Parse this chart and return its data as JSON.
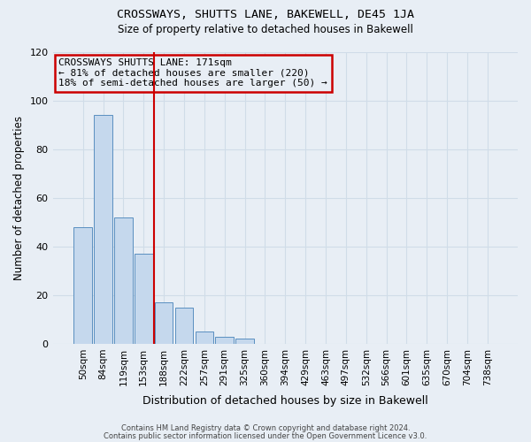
{
  "title": "CROSSWAYS, SHUTTS LANE, BAKEWELL, DE45 1JA",
  "subtitle": "Size of property relative to detached houses in Bakewell",
  "xlabel": "Distribution of detached houses by size in Bakewell",
  "ylabel": "Number of detached properties",
  "bar_labels": [
    "50sqm",
    "84sqm",
    "119sqm",
    "153sqm",
    "188sqm",
    "222sqm",
    "257sqm",
    "291sqm",
    "325sqm",
    "360sqm",
    "394sqm",
    "429sqm",
    "463sqm",
    "497sqm",
    "532sqm",
    "566sqm",
    "601sqm",
    "635sqm",
    "670sqm",
    "704sqm",
    "738sqm"
  ],
  "bar_values": [
    48,
    94,
    52,
    37,
    17,
    15,
    5,
    3,
    2,
    0,
    0,
    0,
    0,
    0,
    0,
    0,
    0,
    0,
    0,
    0,
    0
  ],
  "bar_color": "#c5d8ed",
  "bar_edge_color": "#5a8fc0",
  "vline_pos": 3.5,
  "vline_color": "#cc0000",
  "annotation_title": "CROSSWAYS SHUTTS LANE: 171sqm",
  "annotation_line1": "← 81% of detached houses are smaller (220)",
  "annotation_line2": "18% of semi-detached houses are larger (50) →",
  "annotation_box_color": "#cc0000",
  "ylim": [
    0,
    120
  ],
  "yticks": [
    0,
    20,
    40,
    60,
    80,
    100,
    120
  ],
  "grid_color": "#d0dce8",
  "background_color": "#e8eef5",
  "footer1": "Contains HM Land Registry data © Crown copyright and database right 2024.",
  "footer2": "Contains public sector information licensed under the Open Government Licence v3.0."
}
